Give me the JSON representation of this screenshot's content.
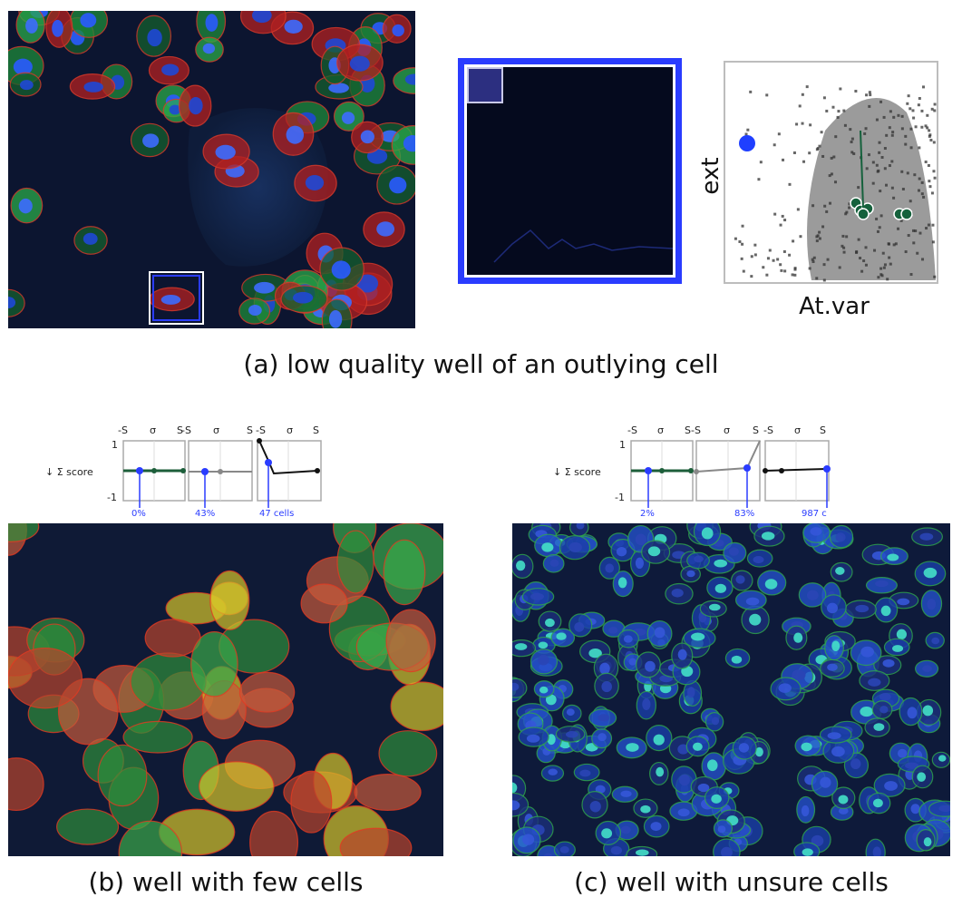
{
  "captions": {
    "a": "(a) low quality well of an outlying cell",
    "b": "(b) well with few cells",
    "c": "(c) well with unsure cells"
  },
  "scatter": {
    "xlabel": "At.var",
    "ylabel": "ext"
  },
  "controls_b": {
    "score_label": "↓ Σ score",
    "y_top": "1",
    "y_bottom": "-1",
    "panel_ticks": [
      "-S",
      "σ",
      "S"
    ],
    "panel_values": [
      "0%",
      "43%",
      "47 cells"
    ]
  },
  "controls_c": {
    "score_label": "↓ Σ score",
    "y_top": "1",
    "y_bottom": "-1",
    "panel_ticks": [
      "-S",
      "σ",
      "S"
    ],
    "panel_values": [
      "2%",
      "83%",
      "987 c"
    ]
  },
  "colors": {
    "highlight_blue": "#2a3cff",
    "green_line": "#1c5e3a",
    "background_dark": "#0b1428"
  }
}
